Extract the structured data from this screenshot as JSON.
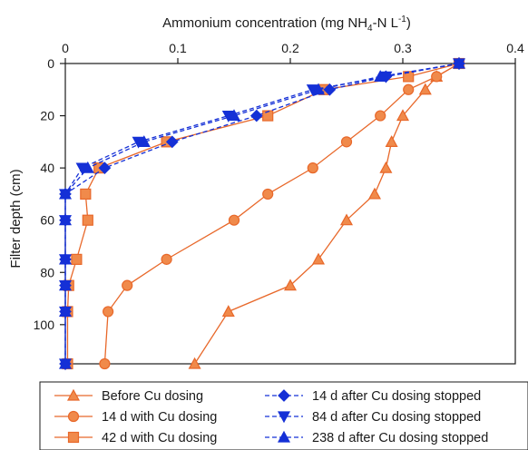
{
  "chart_data": {
    "type": "line",
    "title_parts": [
      "Ammonium concentration (mg NH",
      "4",
      "-N L",
      "-1",
      ")"
    ],
    "xlabel": "Ammonium concentration (mg NH4-N L-1)",
    "ylabel": "Filter depth (cm)",
    "x_axis_position": "top",
    "y_inverted": true,
    "xlim": [
      0,
      0.4
    ],
    "ylim": [
      0,
      115
    ],
    "x_ticks": [
      "0",
      "0.1",
      "0.2",
      "0.3",
      "0.4"
    ],
    "y_ticks": [
      "0",
      "20",
      "40",
      "60",
      "80",
      "100"
    ],
    "grid": false,
    "legend_position": "bottom",
    "series": [
      {
        "name": "Before Cu dosing",
        "color": "#e8682a",
        "line": "solid",
        "marker": "triangle-up",
        "marker_fill": "#f08a4b",
        "points": [
          [
            0.35,
            0
          ],
          [
            0.33,
            5
          ],
          [
            0.32,
            10
          ],
          [
            0.3,
            20
          ],
          [
            0.29,
            30
          ],
          [
            0.285,
            40
          ],
          [
            0.275,
            50
          ],
          [
            0.25,
            60
          ],
          [
            0.225,
            75
          ],
          [
            0.2,
            85
          ],
          [
            0.145,
            95
          ],
          [
            0.115,
            115
          ]
        ]
      },
      {
        "name": "14 d with Cu dosing",
        "color": "#e8682a",
        "line": "solid",
        "marker": "circle",
        "marker_fill": "#f08a4b",
        "points": [
          [
            0.35,
            0
          ],
          [
            0.33,
            5
          ],
          [
            0.305,
            10
          ],
          [
            0.28,
            20
          ],
          [
            0.25,
            30
          ],
          [
            0.22,
            40
          ],
          [
            0.18,
            50
          ],
          [
            0.15,
            60
          ],
          [
            0.09,
            75
          ],
          [
            0.055,
            85
          ],
          [
            0.038,
            95
          ],
          [
            0.035,
            115
          ]
        ]
      },
      {
        "name": "42 d with Cu dosing",
        "color": "#e8682a",
        "line": "solid",
        "marker": "square",
        "marker_fill": "#f08a4b",
        "points": [
          [
            0.35,
            0
          ],
          [
            0.305,
            5
          ],
          [
            0.23,
            10
          ],
          [
            0.18,
            20
          ],
          [
            0.09,
            30
          ],
          [
            0.03,
            40
          ],
          [
            0.018,
            50
          ],
          [
            0.02,
            60
          ],
          [
            0.01,
            75
          ],
          [
            0.003,
            85
          ],
          [
            0.002,
            95
          ],
          [
            0.002,
            115
          ]
        ]
      },
      {
        "name": "14 d after Cu dosing stopped",
        "color": "#1530d6",
        "line": "dashed",
        "marker": "diamond",
        "marker_fill": "#1530d6",
        "points": [
          [
            0.35,
            0
          ],
          [
            0.285,
            5
          ],
          [
            0.235,
            10
          ],
          [
            0.17,
            20
          ],
          [
            0.095,
            30
          ],
          [
            0.035,
            40
          ],
          [
            0.0,
            50
          ],
          [
            0.0,
            60
          ],
          [
            0.0,
            75
          ],
          [
            0.0,
            85
          ],
          [
            0.0,
            95
          ],
          [
            0.0,
            115
          ]
        ]
      },
      {
        "name": "84 d after Cu dosing stopped",
        "color": "#1530d6",
        "line": "dashed",
        "marker": "triangle-down",
        "marker_fill": "#1530d6",
        "points": [
          [
            0.35,
            0
          ],
          [
            0.285,
            5
          ],
          [
            0.22,
            10
          ],
          [
            0.145,
            20
          ],
          [
            0.065,
            30
          ],
          [
            0.015,
            40
          ],
          [
            0.0,
            50
          ],
          [
            0.0,
            60
          ],
          [
            0.0,
            75
          ],
          [
            0.0,
            85
          ],
          [
            0.0,
            95
          ],
          [
            0.0,
            115
          ]
        ]
      },
      {
        "name": "238 d after Cu dosing stopped",
        "color": "#1530d6",
        "line": "dashed",
        "marker": "triangle-up",
        "marker_fill": "#1530d6",
        "points": [
          [
            0.35,
            0
          ],
          [
            0.28,
            5
          ],
          [
            0.225,
            10
          ],
          [
            0.15,
            20
          ],
          [
            0.07,
            30
          ],
          [
            0.02,
            40
          ],
          [
            0.0,
            50
          ],
          [
            0.0,
            60
          ],
          [
            0.0,
            75
          ],
          [
            0.0,
            85
          ],
          [
            0.0,
            95
          ],
          [
            0.0,
            115
          ]
        ]
      }
    ]
  }
}
